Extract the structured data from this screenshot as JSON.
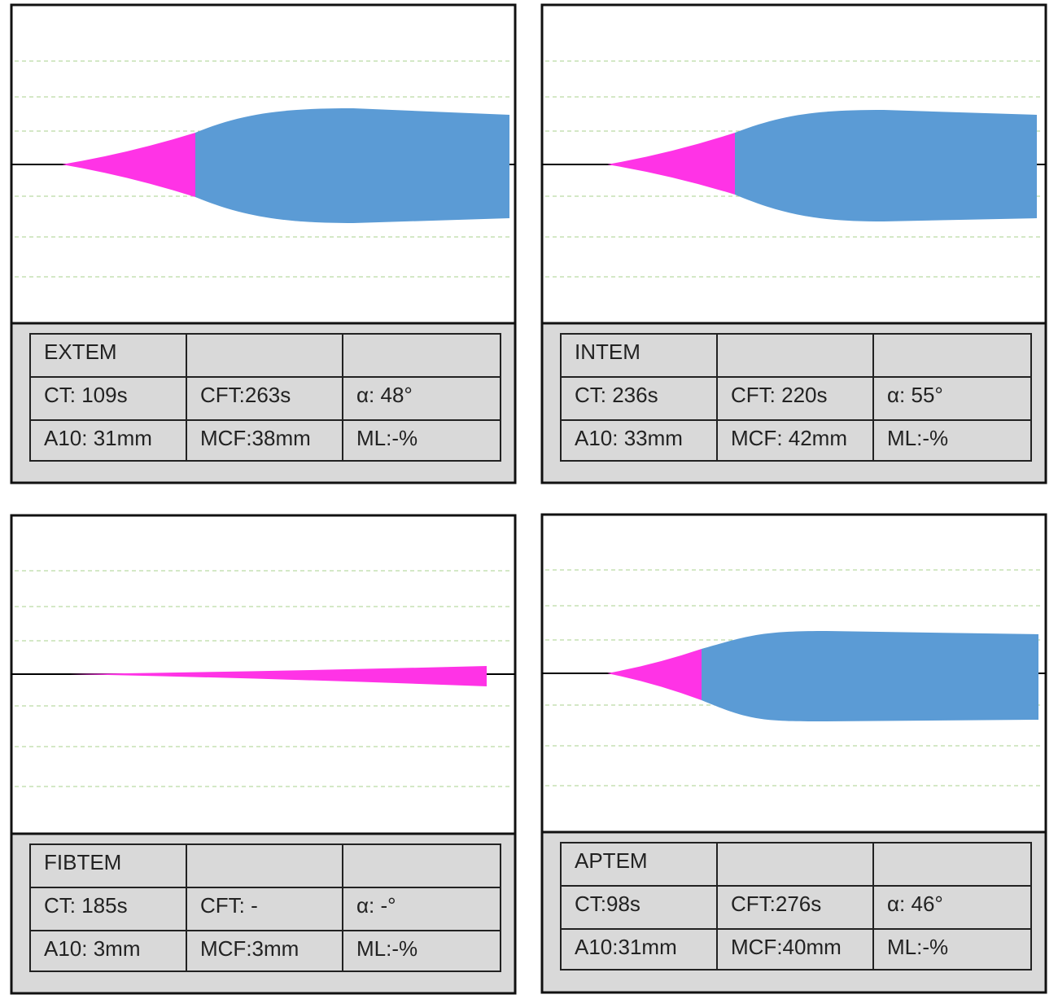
{
  "panels": [
    {
      "name": "EXTEM",
      "rows": [
        [
          "CT: 109s",
          "CFT:263s",
          "α: 48°"
        ],
        [
          "A10: 31mm",
          "MCF:38mm",
          "ML:-%"
        ]
      ]
    },
    {
      "name": "INTEM",
      "rows": [
        [
          "CT: 236s",
          "CFT: 220s",
          "α: 55°"
        ],
        [
          "A10: 33mm",
          "MCF: 42mm",
          "ML:-%"
        ]
      ]
    },
    {
      "name": "FIBTEM",
      "rows": [
        [
          "CT: 185s",
          "CFT: -",
          "α: -°"
        ],
        [
          "A10: 3mm",
          "MCF:3mm",
          "ML:-%"
        ]
      ]
    },
    {
      "name": "APTEM",
      "rows": [
        [
          "CT:98s",
          "CFT:276s",
          "α: 46°"
        ],
        [
          "A10:31mm",
          "MCF:40mm",
          "ML:-%"
        ]
      ]
    }
  ]
}
